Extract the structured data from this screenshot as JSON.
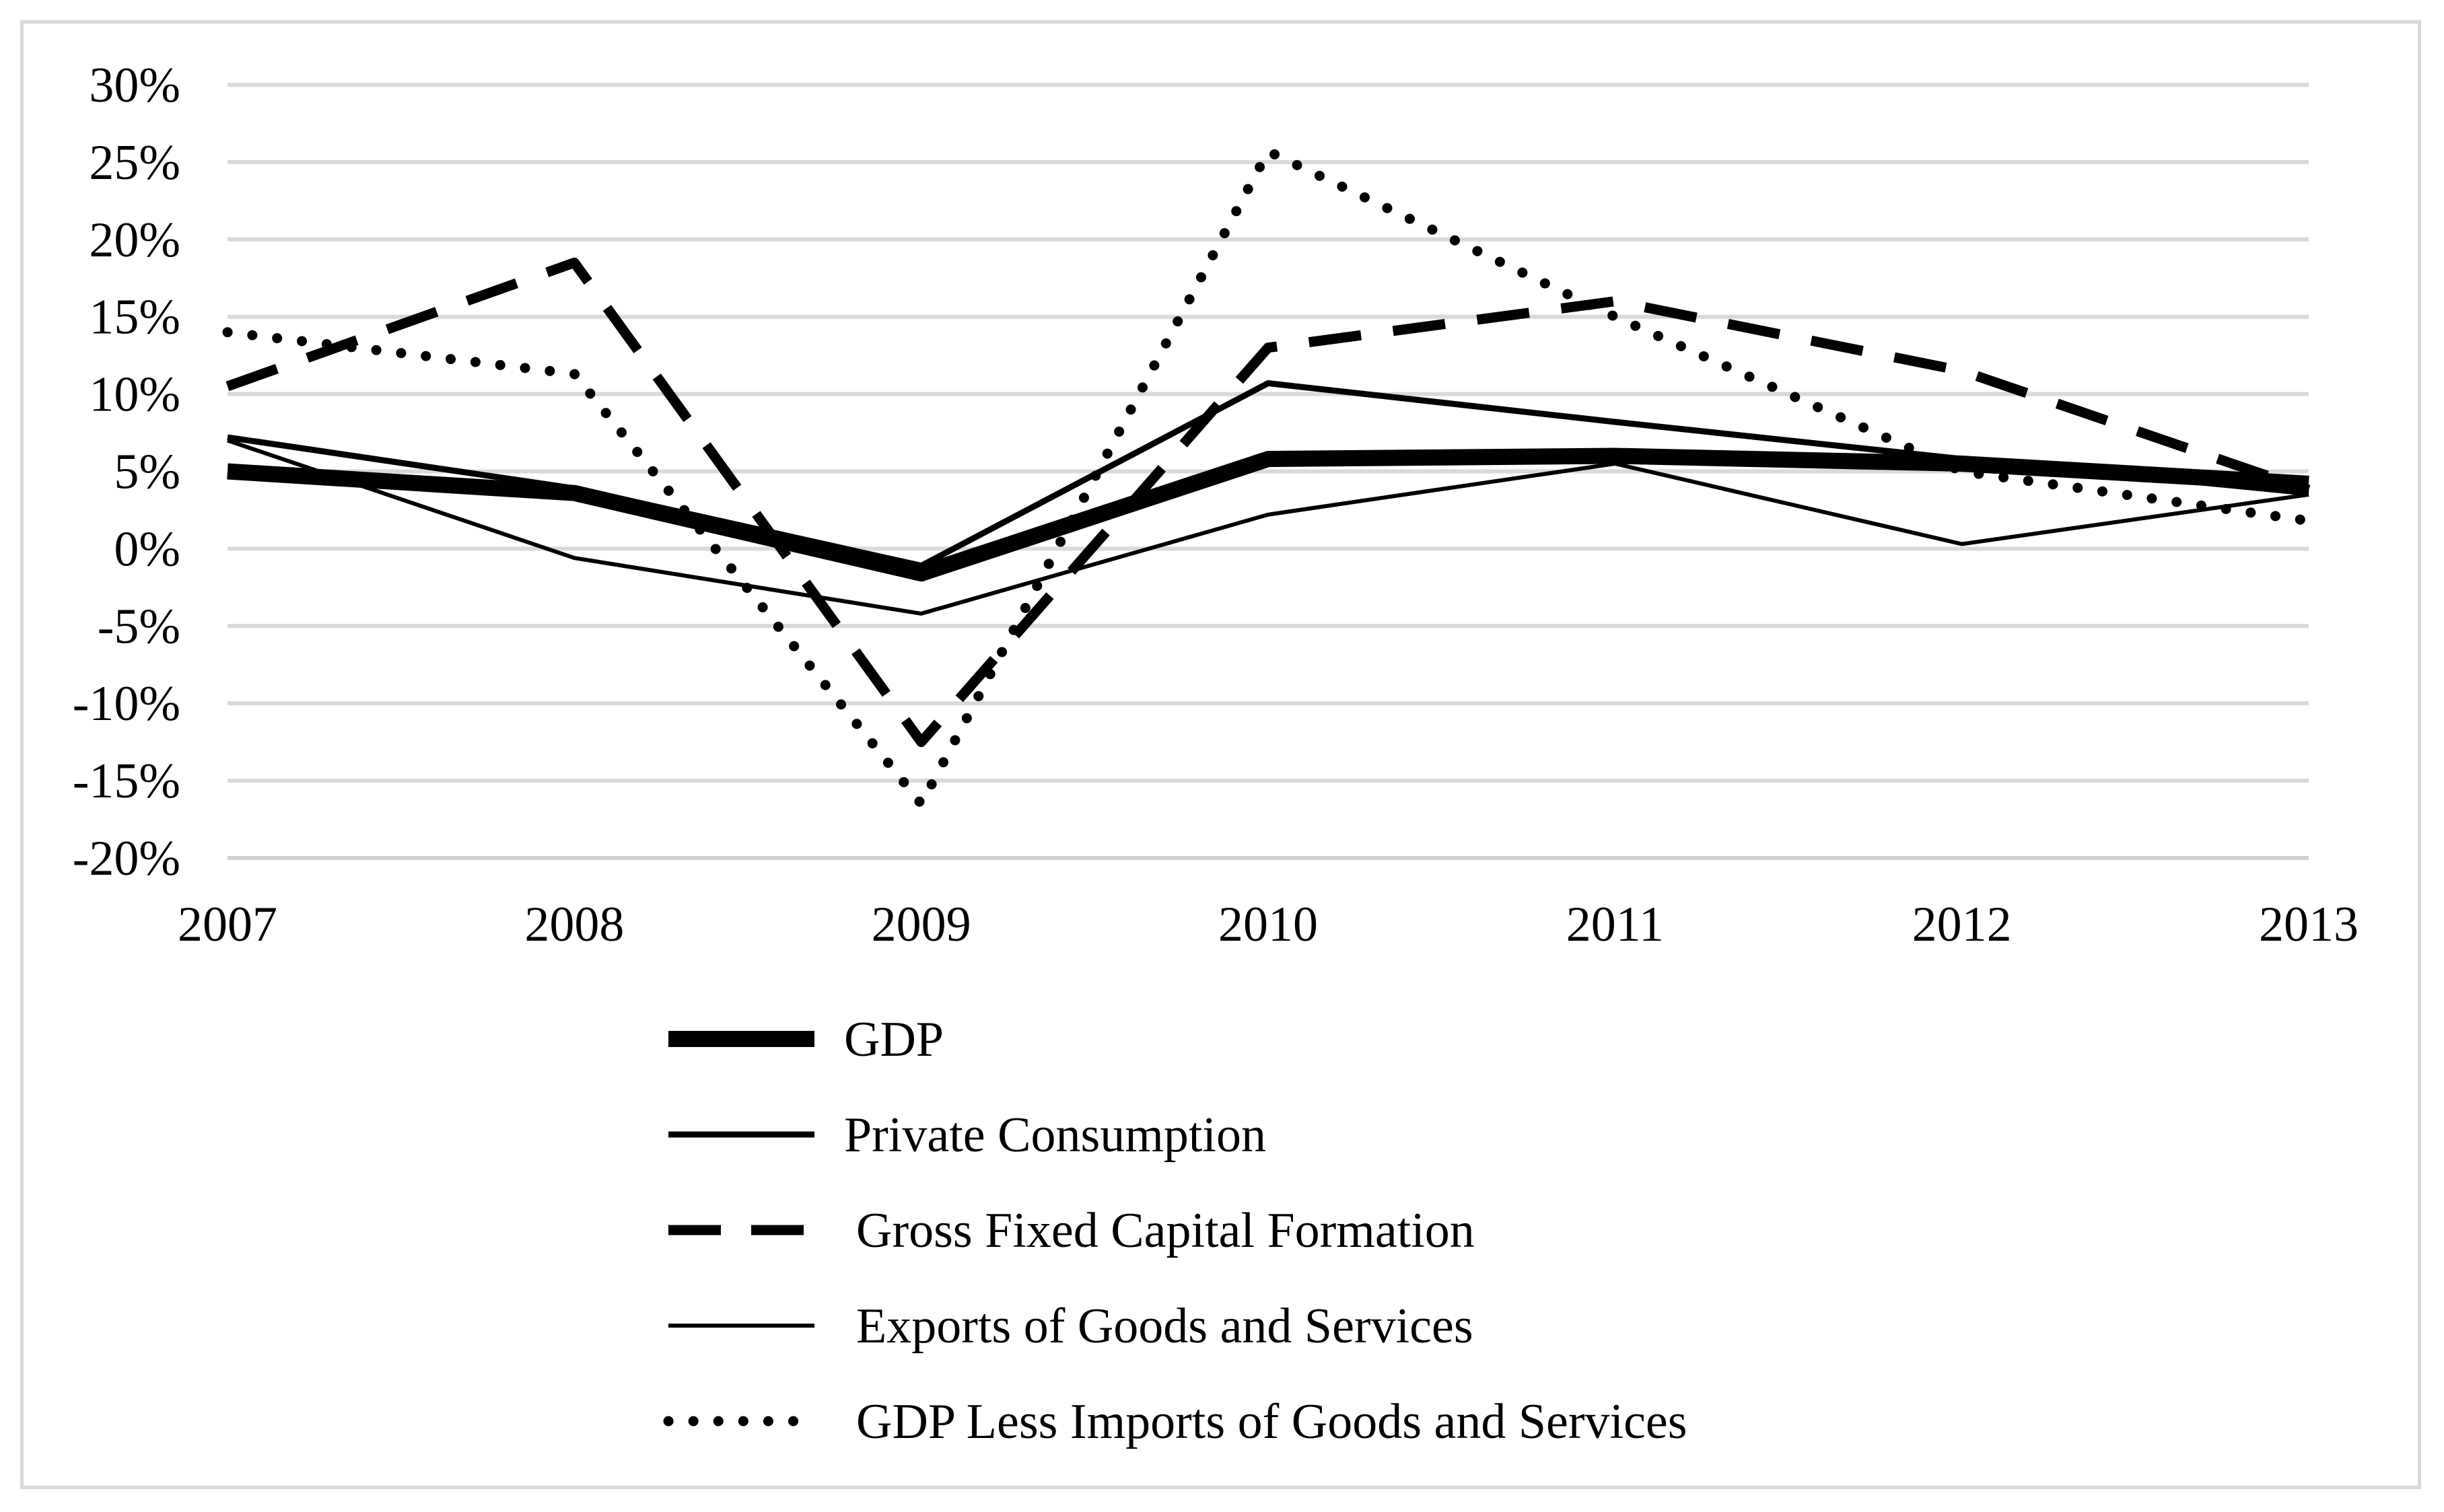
{
  "chart_data": {
    "type": "line",
    "title": "",
    "xlabel": "",
    "ylabel": "",
    "categories": [
      "2007",
      "2008",
      "2009",
      "2010",
      "2011",
      "2012",
      "2013"
    ],
    "ylim": [
      -20,
      30
    ],
    "ytick_step": 5,
    "ytick_labels": [
      "30%",
      "25%",
      "20%",
      "15%",
      "10%",
      "5%",
      "0%",
      "-5%",
      "-10%",
      "-15%",
      "-20%"
    ],
    "grid": true,
    "legend_position": "bottom",
    "series": [
      {
        "name": "GDP",
        "style": "thick-solid",
        "values": [
          5.0,
          3.6,
          -1.6,
          5.8,
          6.0,
          5.5,
          4.2
        ]
      },
      {
        "name": "Private Consumption",
        "style": "solid",
        "values": [
          7.2,
          3.9,
          -1.1,
          10.7,
          8.2,
          5.8,
          3.6
        ]
      },
      {
        "name": "Gross Fixed Capital Formation",
        "style": "dashed",
        "values": [
          10.5,
          18.5,
          -12.5,
          13.0,
          16.0,
          11.5,
          3.8
        ]
      },
      {
        "name": "Exports of Goods and Services",
        "style": "thin-solid",
        "values": [
          7.0,
          -0.6,
          -4.2,
          2.2,
          5.5,
          0.3,
          3.5
        ]
      },
      {
        "name": "GDP Less Imports of Goods and Services",
        "style": "dotted",
        "values": [
          14.0,
          11.3,
          -16.5,
          25.7,
          15.0,
          5.0,
          1.8
        ]
      }
    ]
  }
}
